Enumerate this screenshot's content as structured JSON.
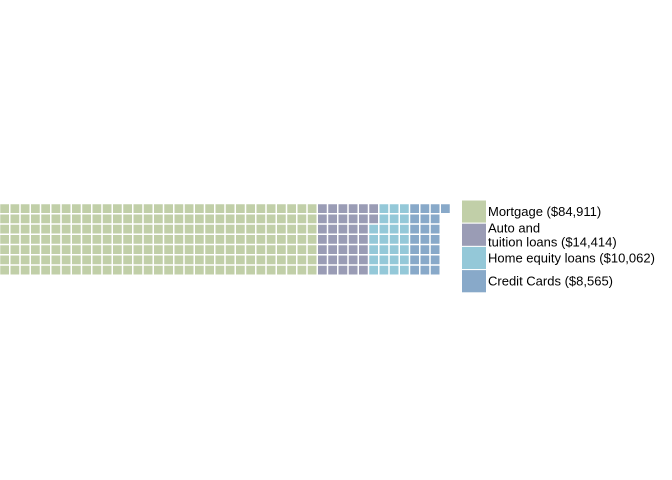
{
  "chart_data": {
    "type": "waffle",
    "rows": 7,
    "series": [
      {
        "name": "Mortgage ($84,911)",
        "name_lines": [
          "Mortgage ($84,911)"
        ],
        "value": 84911,
        "squares": 217,
        "color": "#c1cfa8"
      },
      {
        "name": "Auto and tuition loans ($14,414)",
        "name_lines": [
          "Auto and",
          "tuition loans ($14,414)"
        ],
        "value": 14414,
        "squares": 37,
        "color": "#9a9cb5"
      },
      {
        "name": "Home equity loans ($10,062)",
        "name_lines": [
          "Home equity loans ($10,062)"
        ],
        "value": 10062,
        "squares": 26,
        "color": "#94c8d8"
      },
      {
        "name": "Credit Cards ($8,565)",
        "name_lines": [
          "Credit Cards ($8,565)"
        ],
        "value": 8565,
        "squares": 22,
        "color": "#88a9c9"
      }
    ],
    "legend_position": "right"
  }
}
